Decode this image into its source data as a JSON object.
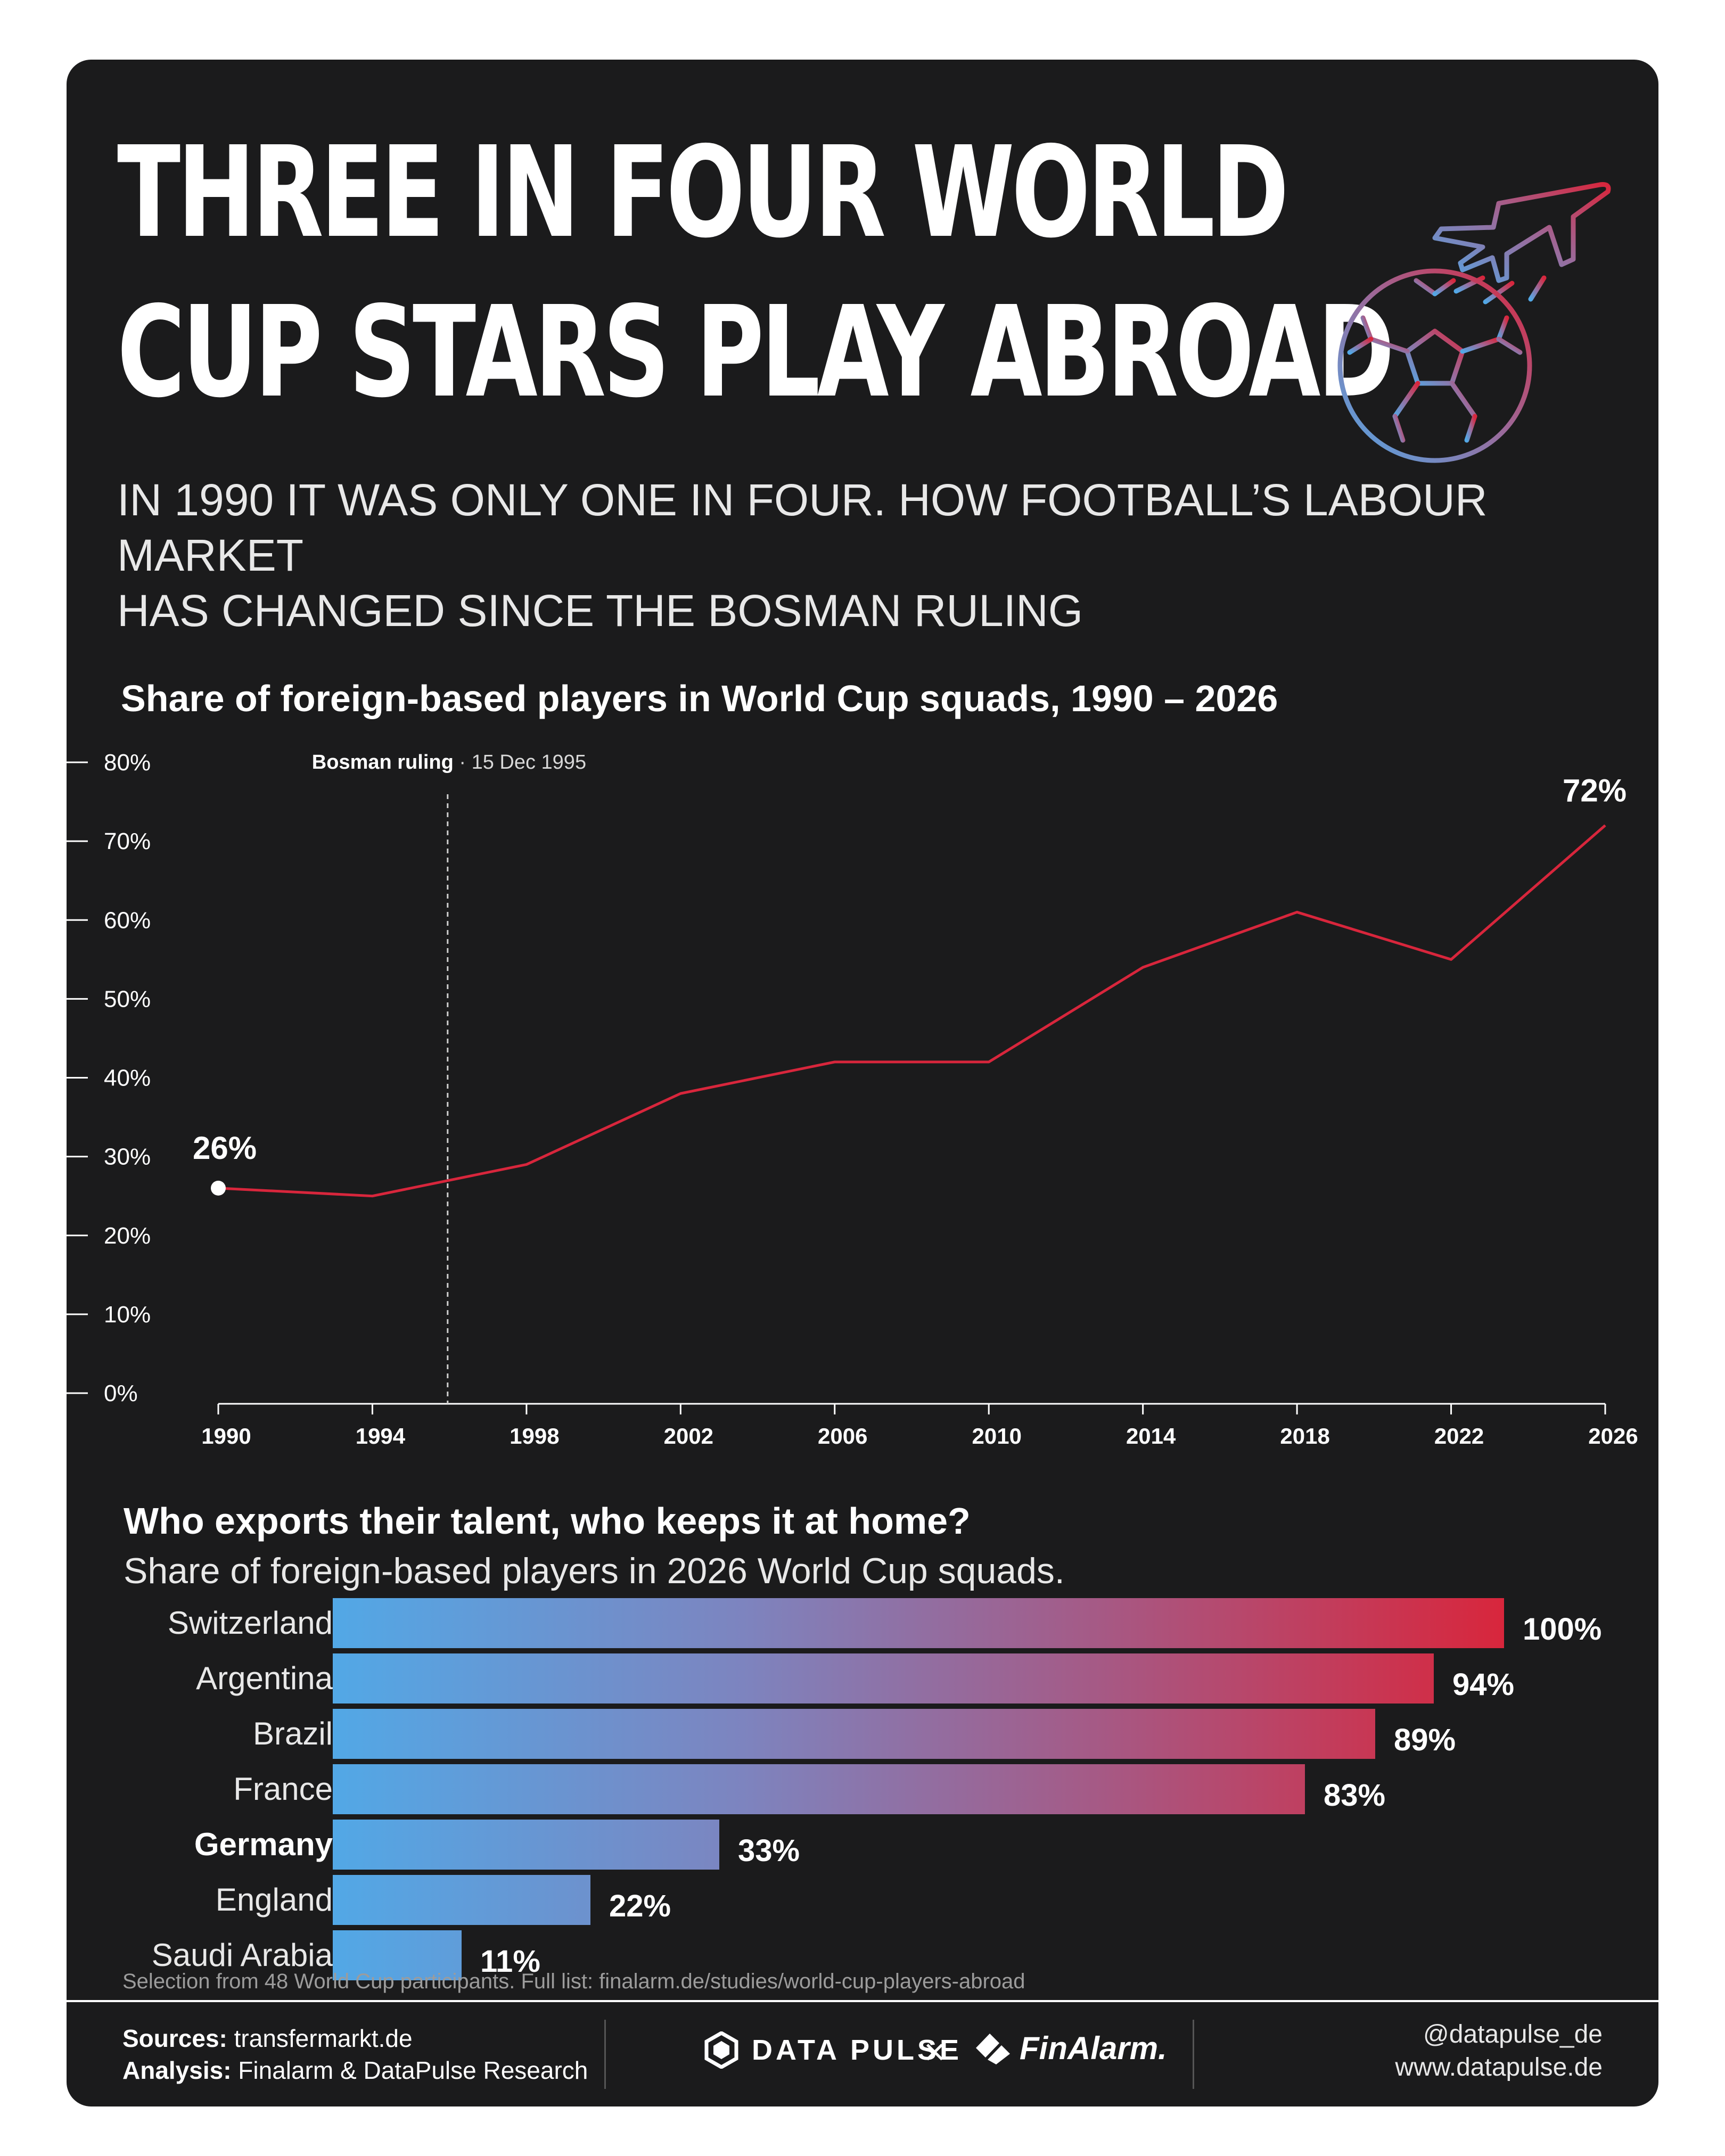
{
  "header": {
    "title_lines": [
      "THREE IN FOUR WORLD",
      "CUP STARS PLAY ABROAD"
    ],
    "subtitle_lines": [
      "IN 1990 IT WAS ONLY ONE IN FOUR. HOW FOOTBALL’S LABOUR MARKET",
      "HAS CHANGED SINCE THE BOSMAN RULING"
    ],
    "icon": "football-with-airplane-icon"
  },
  "colors": {
    "background": "#1b1b1c",
    "line": "#d8263c",
    "gradient_start": "#52a8e6",
    "gradient_end": "#d8263c",
    "text": "#ffffff"
  },
  "chart_data": [
    {
      "type": "line",
      "title": "Share of foreign-based players in World Cup squads, 1990 – 2026",
      "xlabel": "",
      "ylabel": "",
      "x": [
        1990,
        1994,
        1998,
        2002,
        2006,
        2010,
        2014,
        2018,
        2022,
        2026
      ],
      "x_tick_labels": [
        "1990",
        "1994",
        "1998",
        "2002",
        "2006",
        "2010",
        "2014",
        "2018",
        "2022",
        "2026"
      ],
      "series": [
        {
          "values": [
            26,
            25,
            29,
            38,
            42,
            42,
            54,
            61,
            55,
            72
          ]
        }
      ],
      "ylim": [
        0,
        80
      ],
      "y_ticks": [
        0,
        10,
        20,
        30,
        40,
        50,
        60,
        70,
        80
      ],
      "y_tick_labels": [
        "0%",
        "10%",
        "20%",
        "30%",
        "40%",
        "50%",
        "60%",
        "70%",
        "80%"
      ],
      "start_label": "26%",
      "end_label": "72%",
      "annotation": {
        "date": "1995-12-15",
        "label_bold": "Bosman ruling",
        "label_light": " · 15 Dec 1995"
      },
      "grid": false
    },
    {
      "type": "bar",
      "orientation": "horizontal",
      "title": "Who exports their talent, who keeps it at home?",
      "subtitle": "Share of foreign-based players in 2026 World Cup squads.",
      "categories": [
        "Switzerland",
        "Argentina",
        "Brazil",
        "France",
        "Germany",
        "England",
        "Saudi Arabia"
      ],
      "values": [
        100,
        94,
        89,
        83,
        33,
        22,
        11
      ],
      "value_labels": [
        "100%",
        "94%",
        "89%",
        "83%",
        "33%",
        "22%",
        "11%"
      ],
      "highlighted_category": "Germany",
      "xlim": [
        0,
        100
      ]
    }
  ],
  "note": "Selection from 48 World Cup participants. Full list: finalarm.de/studies/world-cup-players-abroad",
  "footer": {
    "sources_label": "Sources:",
    "sources_value": " transfermarkt.de",
    "analysis_label": "Analysis:",
    "analysis_value": " Finalarm & DataPulse Research",
    "brand_left": "DATA PULSE",
    "brand_separator": "×",
    "brand_right": "FinAlarm.",
    "handle": "@datapulse_de",
    "website": "www.datapulse.de"
  }
}
